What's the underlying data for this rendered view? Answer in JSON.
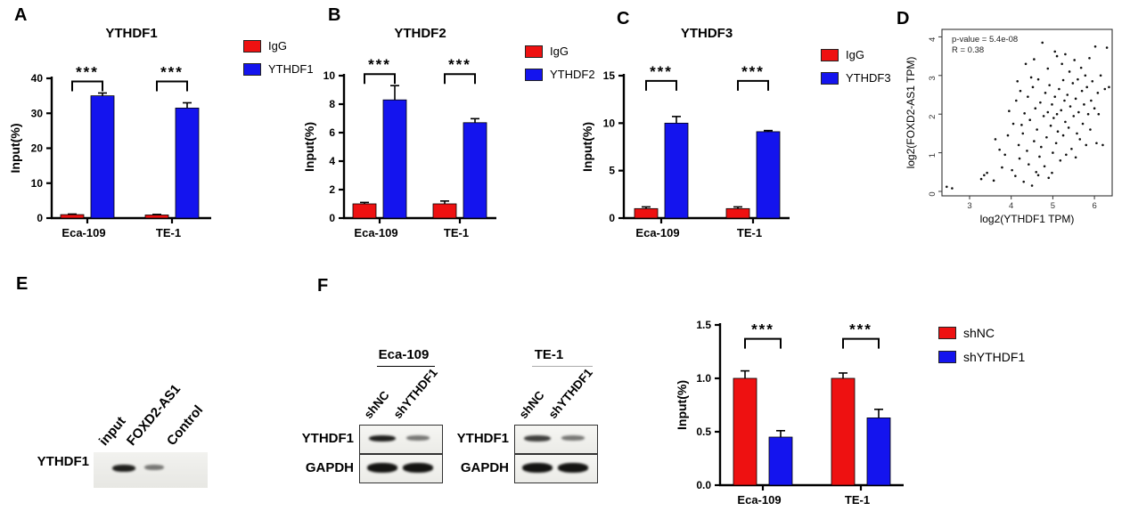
{
  "panels": {
    "A": "A",
    "B": "B",
    "C": "C",
    "D": "D",
    "E": "E",
    "F": "F"
  },
  "colors": {
    "red": "#EE1111",
    "blue": "#1414EE",
    "black": "#000000"
  },
  "chart_data": [
    {
      "id": "A",
      "type": "bar",
      "title": "YTHDF1",
      "ylabel": "Input(%)",
      "categories": [
        "Eca-109",
        "TE-1"
      ],
      "series": [
        {
          "name": "IgG",
          "color": "#EE1111",
          "values": [
            1.0,
            0.9
          ],
          "errors": [
            0.15,
            0.15
          ]
        },
        {
          "name": "YTHDF1",
          "color": "#1414EE",
          "values": [
            35.0,
            31.5
          ],
          "errors": [
            0.8,
            1.5
          ]
        }
      ],
      "ylim": [
        0,
        40
      ],
      "yticks": [
        0,
        10,
        20,
        30,
        40
      ],
      "ytick_labels": [
        "0",
        "10",
        "20",
        "30",
        "40"
      ],
      "significance": [
        "***",
        "***"
      ],
      "legend_position": "right",
      "grid": false
    },
    {
      "id": "B",
      "type": "bar",
      "title": "YTHDF2",
      "ylabel": "Input(%)",
      "categories": [
        "Eca-109",
        "TE-1"
      ],
      "series": [
        {
          "name": "IgG",
          "color": "#EE1111",
          "values": [
            1.0,
            1.0
          ],
          "errors": [
            0.1,
            0.2
          ]
        },
        {
          "name": "YTHDF2",
          "color": "#1414EE",
          "values": [
            8.3,
            6.7
          ],
          "errors": [
            1.0,
            0.28
          ]
        }
      ],
      "ylim": [
        0,
        10
      ],
      "yticks": [
        0,
        2,
        4,
        6,
        8,
        10
      ],
      "ytick_labels": [
        "0",
        "2",
        "4",
        "6",
        "8",
        "10"
      ],
      "significance": [
        "***",
        "***"
      ],
      "legend_position": "right",
      "grid": false
    },
    {
      "id": "C",
      "type": "bar",
      "title": "YTHDF3",
      "ylabel": "Input(%)",
      "categories": [
        "Eca-109",
        "TE-1"
      ],
      "series": [
        {
          "name": "IgG",
          "color": "#EE1111",
          "values": [
            1.0,
            1.0
          ],
          "errors": [
            0.18,
            0.18
          ]
        },
        {
          "name": "YTHDF3",
          "color": "#1414EE",
          "values": [
            10.0,
            9.1
          ],
          "errors": [
            0.7,
            0.12
          ]
        }
      ],
      "ylim": [
        0,
        15
      ],
      "yticks": [
        0,
        5,
        10,
        15
      ],
      "ytick_labels": [
        "0",
        "5",
        "10",
        "15"
      ],
      "significance": [
        "***",
        "***"
      ],
      "legend_position": "right",
      "grid": false
    },
    {
      "id": "D",
      "type": "scatter",
      "xlabel": "log2(YTHDF1 TPM)",
      "ylabel": "log2(FOXD2-AS1 TPM)",
      "annotations": [
        "p-value = 5.4e-08",
        "R = 0.38"
      ],
      "xlim": [
        2.3,
        6.45
      ],
      "ylim": [
        -0.1,
        4.2
      ],
      "xticks": [
        3,
        4,
        5,
        6
      ],
      "yticks": [
        0,
        1,
        2,
        3,
        4
      ],
      "point_color": "#111111",
      "grid": false,
      "points": [
        [
          2.45,
          0.12
        ],
        [
          2.58,
          0.08
        ],
        [
          3.28,
          0.32
        ],
        [
          3.35,
          0.42
        ],
        [
          3.42,
          0.48
        ],
        [
          3.58,
          0.28
        ],
        [
          3.62,
          1.35
        ],
        [
          3.72,
          1.08
        ],
        [
          3.78,
          0.62
        ],
        [
          3.85,
          0.95
        ],
        [
          3.92,
          1.45
        ],
        [
          3.95,
          2.08
        ],
        [
          4.02,
          0.55
        ],
        [
          4.05,
          1.75
        ],
        [
          4.1,
          0.4
        ],
        [
          4.12,
          2.35
        ],
        [
          4.15,
          2.85
        ],
        [
          4.18,
          1.2
        ],
        [
          4.2,
          0.85
        ],
        [
          4.22,
          2.6
        ],
        [
          4.25,
          1.72
        ],
        [
          4.28,
          1.5
        ],
        [
          4.3,
          0.25
        ],
        [
          4.32,
          2.02
        ],
        [
          4.35,
          3.3
        ],
        [
          4.38,
          1.05
        ],
        [
          4.4,
          2.45
        ],
        [
          4.42,
          0.7
        ],
        [
          4.45,
          1.85
        ],
        [
          4.48,
          2.95
        ],
        [
          4.5,
          0.15
        ],
        [
          4.52,
          2.7
        ],
        [
          4.55,
          1.3
        ],
        [
          4.55,
          3.42
        ],
        [
          4.58,
          2.15
        ],
        [
          4.6,
          0.5
        ],
        [
          4.62,
          1.6
        ],
        [
          4.65,
          2.9
        ],
        [
          4.65,
          0.42
        ],
        [
          4.68,
          0.9
        ],
        [
          4.7,
          2.3
        ],
        [
          4.72,
          1.15
        ],
        [
          4.75,
          3.85
        ],
        [
          4.78,
          1.95
        ],
        [
          4.8,
          0.65
        ],
        [
          4.82,
          2.55
        ],
        [
          4.85,
          1.4
        ],
        [
          4.88,
          2.05
        ],
        [
          4.88,
          3.18
        ],
        [
          4.9,
          0.35
        ],
        [
          4.92,
          2.75
        ],
        [
          4.95,
          1.7
        ],
        [
          4.98,
          2.25
        ],
        [
          4.98,
          0.48
        ],
        [
          5.0,
          1.0
        ],
        [
          5.02,
          1.9
        ],
        [
          5.05,
          2.45
        ],
        [
          5.05,
          3.62
        ],
        [
          5.08,
          1.25
        ],
        [
          5.1,
          3.5
        ],
        [
          5.1,
          2.0
        ],
        [
          5.12,
          1.55
        ],
        [
          5.15,
          2.65
        ],
        [
          5.18,
          0.8
        ],
        [
          5.2,
          2.1
        ],
        [
          5.22,
          3.3
        ],
        [
          5.25,
          1.45
        ],
        [
          5.25,
          2.88
        ],
        [
          5.28,
          2.35
        ],
        [
          5.3,
          1.8
        ],
        [
          5.3,
          3.55
        ],
        [
          5.32,
          0.95
        ],
        [
          5.35,
          2.5
        ],
        [
          5.38,
          1.65
        ],
        [
          5.4,
          3.1
        ],
        [
          5.42,
          2.2
        ],
        [
          5.45,
          1.1
        ],
        [
          5.48,
          2.8
        ],
        [
          5.5,
          1.95
        ],
        [
          5.52,
          3.4
        ],
        [
          5.55,
          2.4
        ],
        [
          5.55,
          0.88
        ],
        [
          5.58,
          1.5
        ],
        [
          5.6,
          2.9
        ],
        [
          5.62,
          2.05
        ],
        [
          5.65,
          1.35
        ],
        [
          5.68,
          3.2
        ],
        [
          5.7,
          2.6
        ],
        [
          5.72,
          1.75
        ],
        [
          5.75,
          2.25
        ],
        [
          5.78,
          3.0
        ],
        [
          5.8,
          1.2
        ],
        [
          5.82,
          2.7
        ],
        [
          5.85,
          2.0
        ],
        [
          5.88,
          3.45
        ],
        [
          5.9,
          1.6
        ],
        [
          5.92,
          2.35
        ],
        [
          5.95,
          2.85
        ],
        [
          6.0,
          2.15
        ],
        [
          6.02,
          3.75
        ],
        [
          6.05,
          1.25
        ],
        [
          6.08,
          2.55
        ],
        [
          6.1,
          2.0
        ],
        [
          6.15,
          3.0
        ],
        [
          6.2,
          1.2
        ],
        [
          6.25,
          2.65
        ],
        [
          6.3,
          3.72
        ],
        [
          6.35,
          2.7
        ]
      ]
    },
    {
      "id": "F",
      "type": "bar",
      "title": "",
      "ylabel": "Input(%)",
      "categories": [
        "Eca-109",
        "TE-1"
      ],
      "series": [
        {
          "name": "shNC",
          "color": "#EE1111",
          "values": [
            1.0,
            1.0
          ],
          "errors": [
            0.07,
            0.05
          ]
        },
        {
          "name": "shYTHDF1",
          "color": "#1414EE",
          "values": [
            0.45,
            0.63
          ],
          "errors": [
            0.06,
            0.08
          ]
        }
      ],
      "ylim": [
        0,
        1.5
      ],
      "yticks": [
        0,
        0.5,
        1.0,
        1.5
      ],
      "ytick_labels": [
        "0.0",
        "0.5",
        "1.0",
        "1.5"
      ],
      "significance": [
        "***",
        "***"
      ],
      "legend_position": "right",
      "grid": false
    }
  ],
  "blot_e": {
    "row_label": "YTHDF1",
    "lanes": [
      "input",
      "FOXD2-AS1",
      "Control"
    ],
    "band_intensities": [
      0.95,
      0.55,
      0
    ]
  },
  "blot_f": {
    "groups": [
      {
        "header": "Eca-109",
        "lanes": [
          "shNC",
          "shYTHDF1"
        ],
        "rows": [
          {
            "label": "YTHDF1",
            "bands": [
              0.95,
              0.55
            ]
          },
          {
            "label": "GAPDH",
            "bands": [
              1,
              1
            ]
          }
        ]
      },
      {
        "header": "TE-1",
        "lanes": [
          "shNC",
          "shYTHDF1"
        ],
        "rows": [
          {
            "label": "YTHDF1",
            "bands": [
              0.8,
              0.55
            ]
          },
          {
            "label": "GAPDH",
            "bands": [
              1,
              1
            ]
          }
        ]
      }
    ]
  }
}
